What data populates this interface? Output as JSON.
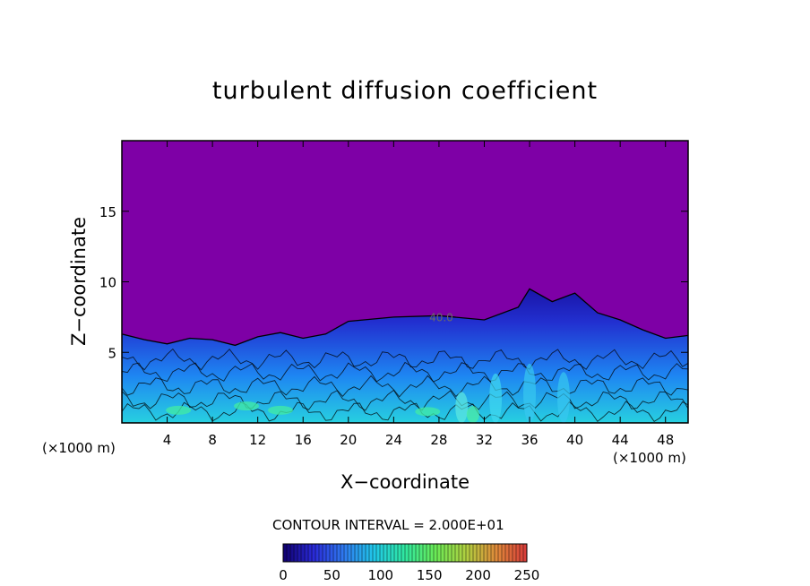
{
  "chart_data": {
    "type": "heatmap",
    "title": "turbulent diffusion coefficient",
    "xlabel": "X−coordinate",
    "ylabel": "Z−coordinate",
    "x_unit_label": "(×1000 m)",
    "x_unit_label_right": "(×1000 m)",
    "xlim": [
      0,
      50
    ],
    "ylim": [
      0,
      20
    ],
    "x_ticks": [
      4,
      8,
      12,
      16,
      20,
      24,
      28,
      32,
      36,
      40,
      44,
      48
    ],
    "y_ticks": [
      5,
      10,
      15
    ],
    "contour_interval_text": "CONTOUR INTERVAL = 2.000E+01",
    "contour_label": "40.0",
    "colorbar": {
      "min": 0,
      "max": 250,
      "ticks": [
        0,
        50,
        100,
        150,
        200,
        250
      ],
      "colormap": [
        "#10006e",
        "#2a2ad8",
        "#2f7bf0",
        "#20c8e8",
        "#30e8a0",
        "#6aea56",
        "#b0d040",
        "#e08a3a",
        "#d83a3a"
      ]
    },
    "background_value_color": "#7e00a6",
    "boundary_layer_top": [
      [
        0,
        6.3
      ],
      [
        2,
        5.9
      ],
      [
        4,
        5.6
      ],
      [
        6,
        6.0
      ],
      [
        8,
        5.9
      ],
      [
        10,
        5.5
      ],
      [
        12,
        6.1
      ],
      [
        14,
        6.4
      ],
      [
        16,
        6.0
      ],
      [
        18,
        6.3
      ],
      [
        20,
        7.2
      ],
      [
        24,
        7.5
      ],
      [
        28,
        7.6
      ],
      [
        32,
        7.3
      ],
      [
        35,
        8.2
      ],
      [
        36,
        9.5
      ],
      [
        38,
        8.6
      ],
      [
        40,
        9.2
      ],
      [
        42,
        7.8
      ],
      [
        44,
        7.3
      ],
      [
        46,
        6.6
      ],
      [
        48,
        6.0
      ],
      [
        50,
        6.2
      ]
    ]
  }
}
